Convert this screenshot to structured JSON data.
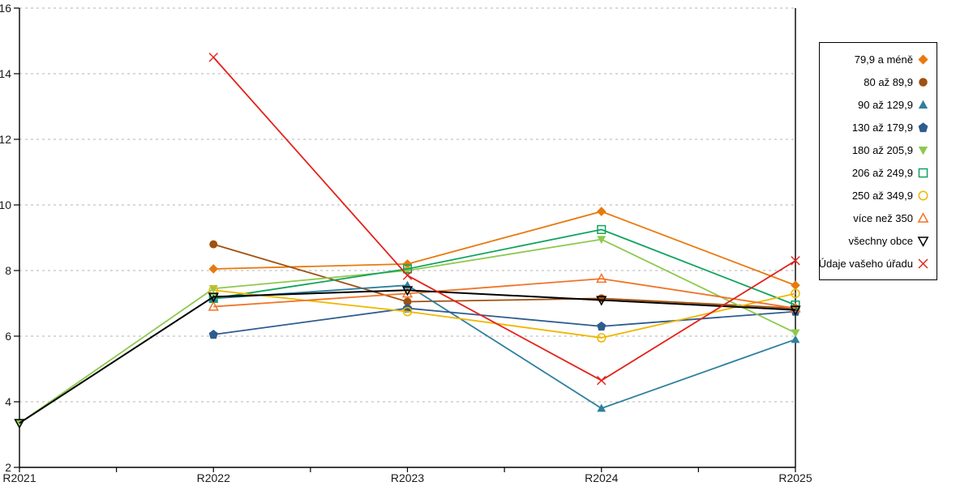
{
  "chart_data": {
    "type": "line",
    "title": "",
    "x_categories": [
      "R2021",
      "R2022",
      "R2023",
      "R2024",
      "R2025"
    ],
    "ylim": [
      2,
      16
    ],
    "ytick_step": 2,
    "y_tick_labels": [
      "2",
      "4",
      "6",
      "8",
      "10",
      "12",
      "14",
      "16"
    ],
    "grid": "horizontal-dashed",
    "grid_color": "#b3b3b3",
    "axis_color": "#000000",
    "legend_position": "right",
    "series": [
      {
        "name": "79,9 a méně",
        "marker": "diamond",
        "style": "solid",
        "color": "#E8790E",
        "values": [
          null,
          8.05,
          8.2,
          9.8,
          7.55
        ]
      },
      {
        "name": "80 až 89,9",
        "marker": "circle",
        "style": "solid",
        "color": "#A0500F",
        "values": [
          null,
          8.8,
          7.05,
          7.15,
          6.85
        ]
      },
      {
        "name": "90 až 129,9",
        "marker": "triangle-up",
        "style": "solid",
        "color": "#2E7F9E",
        "values": [
          null,
          7.15,
          7.55,
          3.8,
          5.9
        ]
      },
      {
        "name": "130 až 179,9",
        "marker": "pentagon",
        "style": "solid",
        "color": "#2E5C8F",
        "values": [
          null,
          6.05,
          6.85,
          6.3,
          6.75
        ]
      },
      {
        "name": "180 až 205,9",
        "marker": "triangle-down",
        "style": "solid",
        "color": "#8DC94E",
        "values": [
          3.35,
          7.45,
          8.0,
          8.95,
          6.1
        ]
      },
      {
        "name": "206 až 249,9",
        "marker": "square",
        "style": "hollow",
        "color": "#0FA35C",
        "values": [
          null,
          7.15,
          8.05,
          9.25,
          6.95
        ]
      },
      {
        "name": "250 až 349,9",
        "marker": "circle",
        "style": "hollow",
        "color": "#EFB700",
        "values": [
          null,
          7.4,
          6.75,
          5.95,
          7.3
        ]
      },
      {
        "name": "více než 350",
        "marker": "triangle-up",
        "style": "hollow",
        "color": "#F07428",
        "values": [
          null,
          6.9,
          7.3,
          7.75,
          6.85
        ]
      },
      {
        "name": "všechny obce",
        "marker": "triangle-down",
        "style": "hollow",
        "color": "#000000",
        "values": [
          3.35,
          7.2,
          7.4,
          7.1,
          6.8
        ]
      },
      {
        "name": "Údaje vašeho úřadu",
        "marker": "x",
        "style": "line",
        "color": "#E32119",
        "values": [
          null,
          14.5,
          7.85,
          4.65,
          8.3
        ]
      }
    ]
  }
}
